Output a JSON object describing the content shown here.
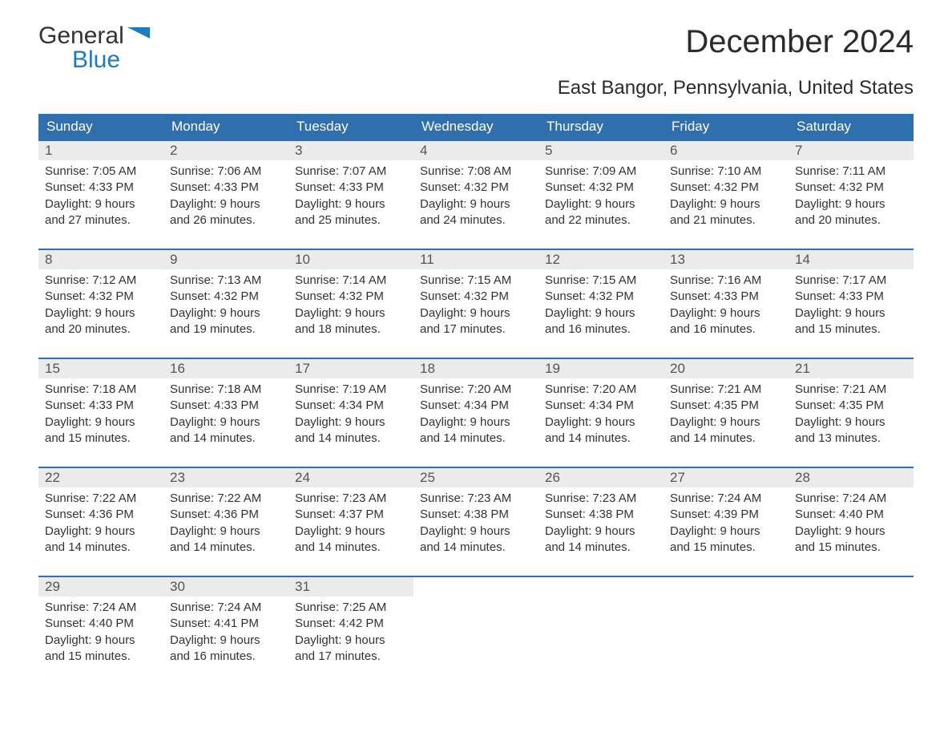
{
  "logo": {
    "line1": "General",
    "line2": "Blue"
  },
  "title": "December 2024",
  "subtitle": "East Bangor, Pennsylvania, United States",
  "colors": {
    "header_bg": "#2f6fae",
    "header_text": "#ffffff",
    "daynum_bg": "#ebebeb",
    "week_border": "#2f6fae",
    "logo_blue": "#1f7bbf",
    "body_text": "#333333",
    "background": "#ffffff"
  },
  "weekdays": [
    "Sunday",
    "Monday",
    "Tuesday",
    "Wednesday",
    "Thursday",
    "Friday",
    "Saturday"
  ],
  "weeks": [
    [
      {
        "n": "1",
        "sunrise": "7:05 AM",
        "sunset": "4:33 PM",
        "dl1": "Daylight: 9 hours",
        "dl2": "and 27 minutes."
      },
      {
        "n": "2",
        "sunrise": "7:06 AM",
        "sunset": "4:33 PM",
        "dl1": "Daylight: 9 hours",
        "dl2": "and 26 minutes."
      },
      {
        "n": "3",
        "sunrise": "7:07 AM",
        "sunset": "4:33 PM",
        "dl1": "Daylight: 9 hours",
        "dl2": "and 25 minutes."
      },
      {
        "n": "4",
        "sunrise": "7:08 AM",
        "sunset": "4:32 PM",
        "dl1": "Daylight: 9 hours",
        "dl2": "and 24 minutes."
      },
      {
        "n": "5",
        "sunrise": "7:09 AM",
        "sunset": "4:32 PM",
        "dl1": "Daylight: 9 hours",
        "dl2": "and 22 minutes."
      },
      {
        "n": "6",
        "sunrise": "7:10 AM",
        "sunset": "4:32 PM",
        "dl1": "Daylight: 9 hours",
        "dl2": "and 21 minutes."
      },
      {
        "n": "7",
        "sunrise": "7:11 AM",
        "sunset": "4:32 PM",
        "dl1": "Daylight: 9 hours",
        "dl2": "and 20 minutes."
      }
    ],
    [
      {
        "n": "8",
        "sunrise": "7:12 AM",
        "sunset": "4:32 PM",
        "dl1": "Daylight: 9 hours",
        "dl2": "and 20 minutes."
      },
      {
        "n": "9",
        "sunrise": "7:13 AM",
        "sunset": "4:32 PM",
        "dl1": "Daylight: 9 hours",
        "dl2": "and 19 minutes."
      },
      {
        "n": "10",
        "sunrise": "7:14 AM",
        "sunset": "4:32 PM",
        "dl1": "Daylight: 9 hours",
        "dl2": "and 18 minutes."
      },
      {
        "n": "11",
        "sunrise": "7:15 AM",
        "sunset": "4:32 PM",
        "dl1": "Daylight: 9 hours",
        "dl2": "and 17 minutes."
      },
      {
        "n": "12",
        "sunrise": "7:15 AM",
        "sunset": "4:32 PM",
        "dl1": "Daylight: 9 hours",
        "dl2": "and 16 minutes."
      },
      {
        "n": "13",
        "sunrise": "7:16 AM",
        "sunset": "4:33 PM",
        "dl1": "Daylight: 9 hours",
        "dl2": "and 16 minutes."
      },
      {
        "n": "14",
        "sunrise": "7:17 AM",
        "sunset": "4:33 PM",
        "dl1": "Daylight: 9 hours",
        "dl2": "and 15 minutes."
      }
    ],
    [
      {
        "n": "15",
        "sunrise": "7:18 AM",
        "sunset": "4:33 PM",
        "dl1": "Daylight: 9 hours",
        "dl2": "and 15 minutes."
      },
      {
        "n": "16",
        "sunrise": "7:18 AM",
        "sunset": "4:33 PM",
        "dl1": "Daylight: 9 hours",
        "dl2": "and 14 minutes."
      },
      {
        "n": "17",
        "sunrise": "7:19 AM",
        "sunset": "4:34 PM",
        "dl1": "Daylight: 9 hours",
        "dl2": "and 14 minutes."
      },
      {
        "n": "18",
        "sunrise": "7:20 AM",
        "sunset": "4:34 PM",
        "dl1": "Daylight: 9 hours",
        "dl2": "and 14 minutes."
      },
      {
        "n": "19",
        "sunrise": "7:20 AM",
        "sunset": "4:34 PM",
        "dl1": "Daylight: 9 hours",
        "dl2": "and 14 minutes."
      },
      {
        "n": "20",
        "sunrise": "7:21 AM",
        "sunset": "4:35 PM",
        "dl1": "Daylight: 9 hours",
        "dl2": "and 14 minutes."
      },
      {
        "n": "21",
        "sunrise": "7:21 AM",
        "sunset": "4:35 PM",
        "dl1": "Daylight: 9 hours",
        "dl2": "and 13 minutes."
      }
    ],
    [
      {
        "n": "22",
        "sunrise": "7:22 AM",
        "sunset": "4:36 PM",
        "dl1": "Daylight: 9 hours",
        "dl2": "and 14 minutes."
      },
      {
        "n": "23",
        "sunrise": "7:22 AM",
        "sunset": "4:36 PM",
        "dl1": "Daylight: 9 hours",
        "dl2": "and 14 minutes."
      },
      {
        "n": "24",
        "sunrise": "7:23 AM",
        "sunset": "4:37 PM",
        "dl1": "Daylight: 9 hours",
        "dl2": "and 14 minutes."
      },
      {
        "n": "25",
        "sunrise": "7:23 AM",
        "sunset": "4:38 PM",
        "dl1": "Daylight: 9 hours",
        "dl2": "and 14 minutes."
      },
      {
        "n": "26",
        "sunrise": "7:23 AM",
        "sunset": "4:38 PM",
        "dl1": "Daylight: 9 hours",
        "dl2": "and 14 minutes."
      },
      {
        "n": "27",
        "sunrise": "7:24 AM",
        "sunset": "4:39 PM",
        "dl1": "Daylight: 9 hours",
        "dl2": "and 15 minutes."
      },
      {
        "n": "28",
        "sunrise": "7:24 AM",
        "sunset": "4:40 PM",
        "dl1": "Daylight: 9 hours",
        "dl2": "and 15 minutes."
      }
    ],
    [
      {
        "n": "29",
        "sunrise": "7:24 AM",
        "sunset": "4:40 PM",
        "dl1": "Daylight: 9 hours",
        "dl2": "and 15 minutes."
      },
      {
        "n": "30",
        "sunrise": "7:24 AM",
        "sunset": "4:41 PM",
        "dl1": "Daylight: 9 hours",
        "dl2": "and 16 minutes."
      },
      {
        "n": "31",
        "sunrise": "7:25 AM",
        "sunset": "4:42 PM",
        "dl1": "Daylight: 9 hours",
        "dl2": "and 17 minutes."
      },
      null,
      null,
      null,
      null
    ]
  ],
  "labels": {
    "sunrise_prefix": "Sunrise: ",
    "sunset_prefix": "Sunset: "
  }
}
